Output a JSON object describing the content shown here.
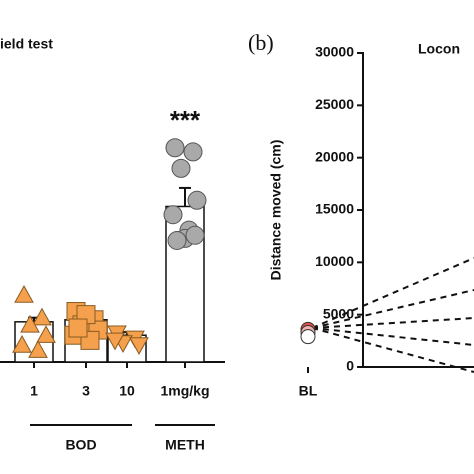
{
  "chart_data": [
    {
      "type": "bar",
      "title": "ield test",
      "categories": [
        "1",
        "3",
        "10",
        "1mg/kg"
      ],
      "values": [
        3900,
        4100,
        2600,
        15100
      ],
      "errors": [
        400,
        400,
        300,
        1800
      ],
      "points": [
        [
          6500,
          4300,
          3600,
          2600,
          1650,
          1150
        ],
        [
          4900,
          4100,
          3600,
          3100,
          2600,
          2100,
          4600,
          3300
        ],
        [
          2800,
          2300,
          1850,
          1650,
          2100
        ],
        [
          20800,
          20400,
          18800,
          15700,
          14300,
          12800,
          12000,
          11800,
          12300
        ]
      ],
      "markers": [
        "triangle",
        "square",
        "triangle-down",
        "circle"
      ],
      "marker_colors": [
        "#f4a04c",
        "#f4a04c",
        "#f4a04c",
        "#a9a9a9"
      ],
      "color": "#ffffff",
      "ylim": [
        0,
        30000
      ],
      "groups": [
        {
          "name": "BOD",
          "categories": [
            "1",
            "3",
            "10"
          ]
        },
        {
          "name": "METH",
          "categories": [
            "1mg/kg"
          ]
        }
      ],
      "annotations": [
        {
          "text": "***",
          "category": "1mg/kg"
        }
      ]
    },
    {
      "type": "scatter",
      "panel_label": "(b)",
      "title": "Locon",
      "ylabel": "Distance moved (cm)",
      "categories": [
        "BL"
      ],
      "series": [
        {
          "color": "#e05050",
          "values": [
            3600
          ]
        },
        {
          "color": "#f2b0b0",
          "values": [
            3300
          ]
        },
        {
          "color": "#ffffff",
          "values": [
            2900
          ]
        }
      ],
      "ylim": [
        0,
        30000
      ],
      "yticks": [
        0,
        5000,
        10000,
        15000,
        20000,
        25000,
        30000
      ]
    }
  ]
}
